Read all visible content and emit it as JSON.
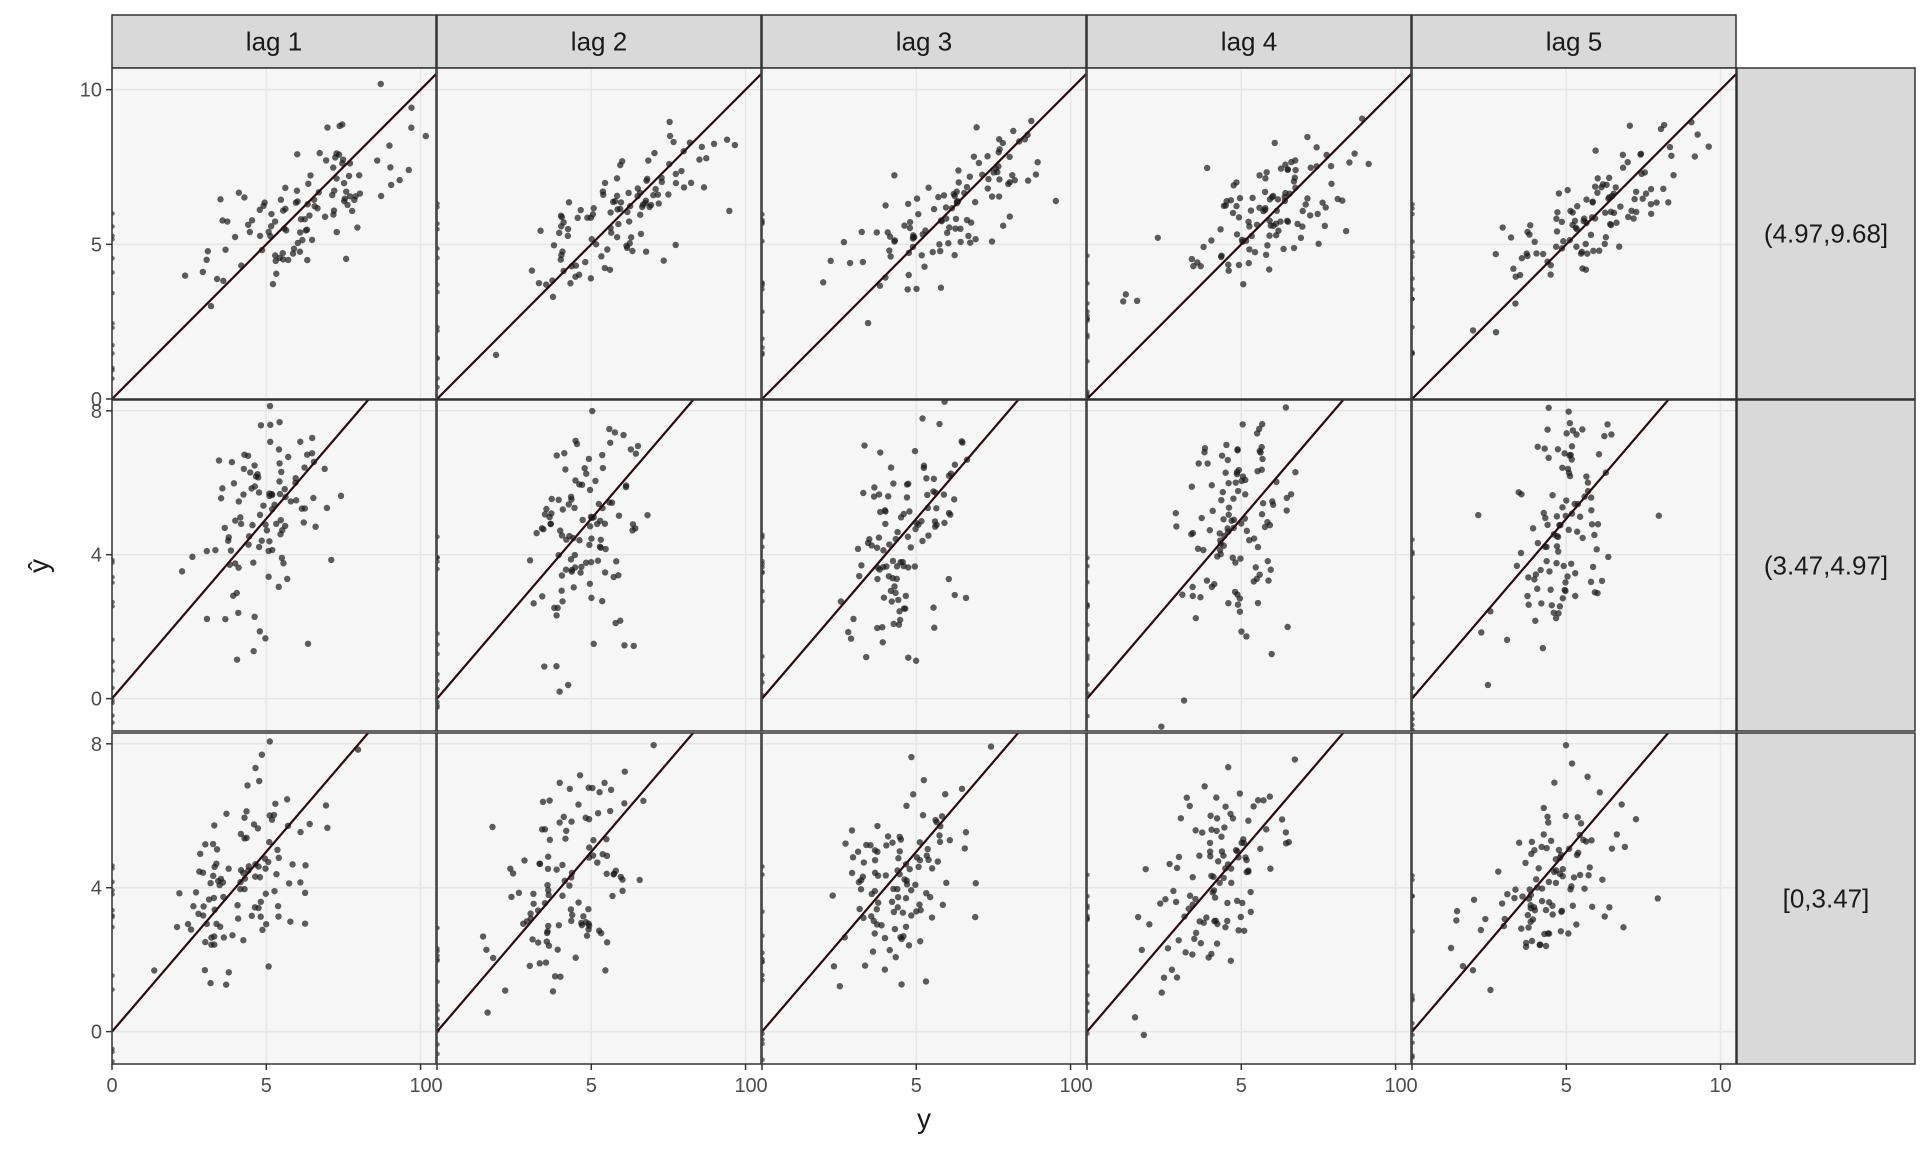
{
  "chart_data": {
    "type": "scatter",
    "title": "",
    "xlabel": "y",
    "ylabel": "ŷ",
    "grid": true,
    "legend": "none",
    "colors": {
      "panel_bg": "#f6f6f6",
      "strip_bg": "#d9d9d9",
      "point": "#1a1a1a",
      "line": "#2b0a10",
      "grid": "#e6e6e6",
      "border": "#333333"
    },
    "facet_columns": [
      "lag 1",
      "lag 2",
      "lag 3",
      "lag 4",
      "lag 5"
    ],
    "facet_rows": [
      "(4.97,9.68]",
      "(3.47,4.97]",
      "[0,3.47]"
    ],
    "x_axis": {
      "range": [
        0,
        10.5
      ],
      "ticks": [
        0,
        5,
        10
      ],
      "tick_labels": [
        "0",
        "5",
        "10"
      ]
    },
    "row_axes": [
      {
        "range": [
          0,
          10.7
        ],
        "ticks": [
          0,
          5,
          10
        ],
        "tick_labels": [
          "0",
          "5",
          "10"
        ]
      },
      {
        "range": [
          -0.9,
          8.3
        ],
        "ticks": [
          0,
          4,
          8
        ],
        "tick_labels": [
          "0",
          "4",
          "8"
        ]
      },
      {
        "range": [
          -0.9,
          8.3
        ],
        "ticks": [
          0,
          4,
          8
        ],
        "tick_labels": [
          "0",
          "4",
          "8"
        ]
      }
    ],
    "reference_line": "y = x",
    "points_per_panel": 110,
    "row_point_spread": [
      {
        "x_mean": 6.0,
        "x_sd": 1.6,
        "y_sd": 1.35,
        "corr": 0.7
      },
      {
        "x_mean": 4.8,
        "x_sd": 1.0,
        "y_sd": 1.75,
        "corr": 0.4
      },
      {
        "x_mean": 4.3,
        "x_sd": 1.2,
        "y_sd": 1.5,
        "corr": 0.45
      }
    ]
  }
}
